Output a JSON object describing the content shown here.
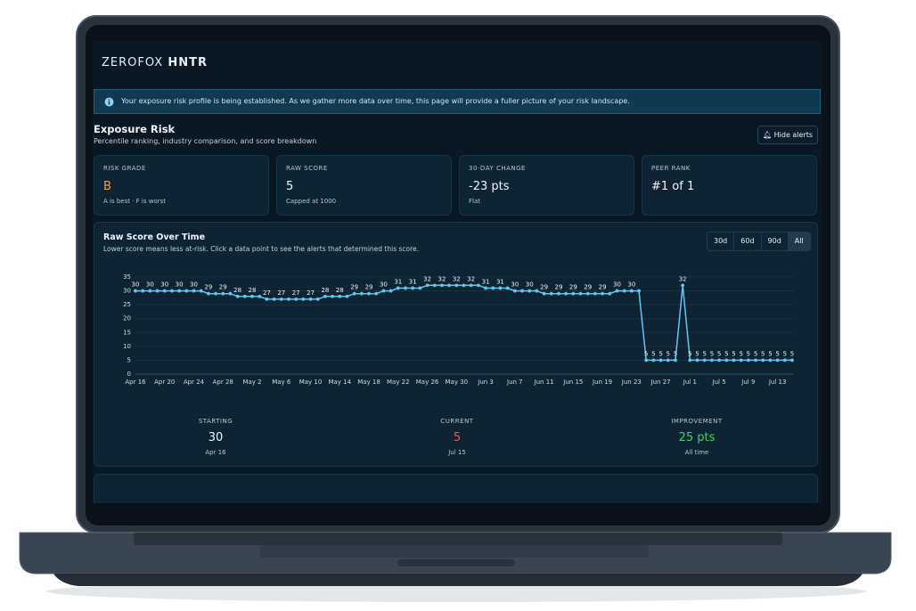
{
  "app": {
    "logo": {
      "brand": "ZEROFOX",
      "product": "HNTR"
    },
    "banner": "Your exposure risk profile is being established. As we gather more data over time, this page will provide a fuller picture of your risk landscape.",
    "page_title": "Exposure Risk",
    "page_subtitle": "Percentile ranking, industry comparison, and score breakdown",
    "hide_alerts": "Hide alerts",
    "cards": [
      {
        "label": "RISK GRADE",
        "value": "B",
        "note": "A is best · F is worst"
      },
      {
        "label": "RAW SCORE",
        "value": "5",
        "note": "Capped at 1000"
      },
      {
        "label": "30-DAY CHANGE",
        "value": "-23 pts",
        "note": "Flat"
      },
      {
        "label": "PEER RANK",
        "value": "#1 of 1"
      }
    ],
    "ranges": [
      "30d",
      "60d",
      "90d",
      "All"
    ],
    "summary": [
      {
        "label": "STARTING",
        "value": "30",
        "note": "Apr 16"
      },
      {
        "label": "CURRENT",
        "value": "5",
        "note": "Jul 15"
      },
      {
        "label": "IMPROVEMENT",
        "value": "25 pts",
        "note": "All time"
      }
    ]
  },
  "chart_data": {
    "type": "line",
    "title": "Raw Score Over Time",
    "subtitle": "Lower score means less at-risk. Click a data point to see the alerts that determined this score.",
    "color": "#5ec8f2",
    "grid": true,
    "ylim": [
      0,
      35
    ],
    "yticks": [
      0,
      5,
      10,
      15,
      20,
      25,
      30,
      35
    ],
    "categories": [
      "Apr 16",
      null,
      null,
      null,
      "Apr 20",
      null,
      null,
      null,
      "Apr 24",
      null,
      null,
      null,
      "Apr 28",
      null,
      null,
      null,
      "May 2",
      null,
      null,
      null,
      "May 6",
      null,
      null,
      null,
      "May 10",
      null,
      null,
      null,
      "May 14",
      null,
      null,
      null,
      "May 18",
      null,
      null,
      null,
      "May 22",
      null,
      null,
      null,
      "May 26",
      null,
      null,
      null,
      "May 30",
      null,
      null,
      null,
      "Jun 3",
      null,
      null,
      null,
      "Jun 7",
      null,
      null,
      null,
      "Jun 11",
      null,
      null,
      null,
      "Jun 15",
      null,
      null,
      null,
      "Jun 19",
      null,
      null,
      null,
      "Jun 23",
      null,
      null,
      null,
      "Jun 27",
      null,
      null,
      null,
      "Jul 1",
      null,
      null,
      null,
      "Jul 5",
      null,
      null,
      null,
      "Jul 9",
      null,
      null,
      null,
      "Jul 13",
      null,
      null
    ],
    "values": [
      30,
      30,
      30,
      30,
      30,
      30,
      30,
      30,
      30,
      30,
      29,
      29,
      29,
      29,
      28,
      28,
      28,
      28,
      27,
      27,
      27,
      27,
      27,
      27,
      27,
      27,
      28,
      28,
      28,
      28,
      29,
      29,
      29,
      29,
      30,
      30,
      31,
      31,
      31,
      31,
      32,
      32,
      32,
      32,
      32,
      32,
      32,
      32,
      31,
      31,
      31,
      31,
      30,
      30,
      30,
      30,
      29,
      29,
      29,
      29,
      29,
      29,
      29,
      29,
      29,
      29,
      30,
      30,
      30,
      30,
      5,
      5,
      5,
      5,
      5,
      32,
      5,
      5,
      5,
      5,
      5,
      5,
      5,
      5,
      5,
      5,
      5,
      5,
      5,
      5,
      5
    ]
  }
}
